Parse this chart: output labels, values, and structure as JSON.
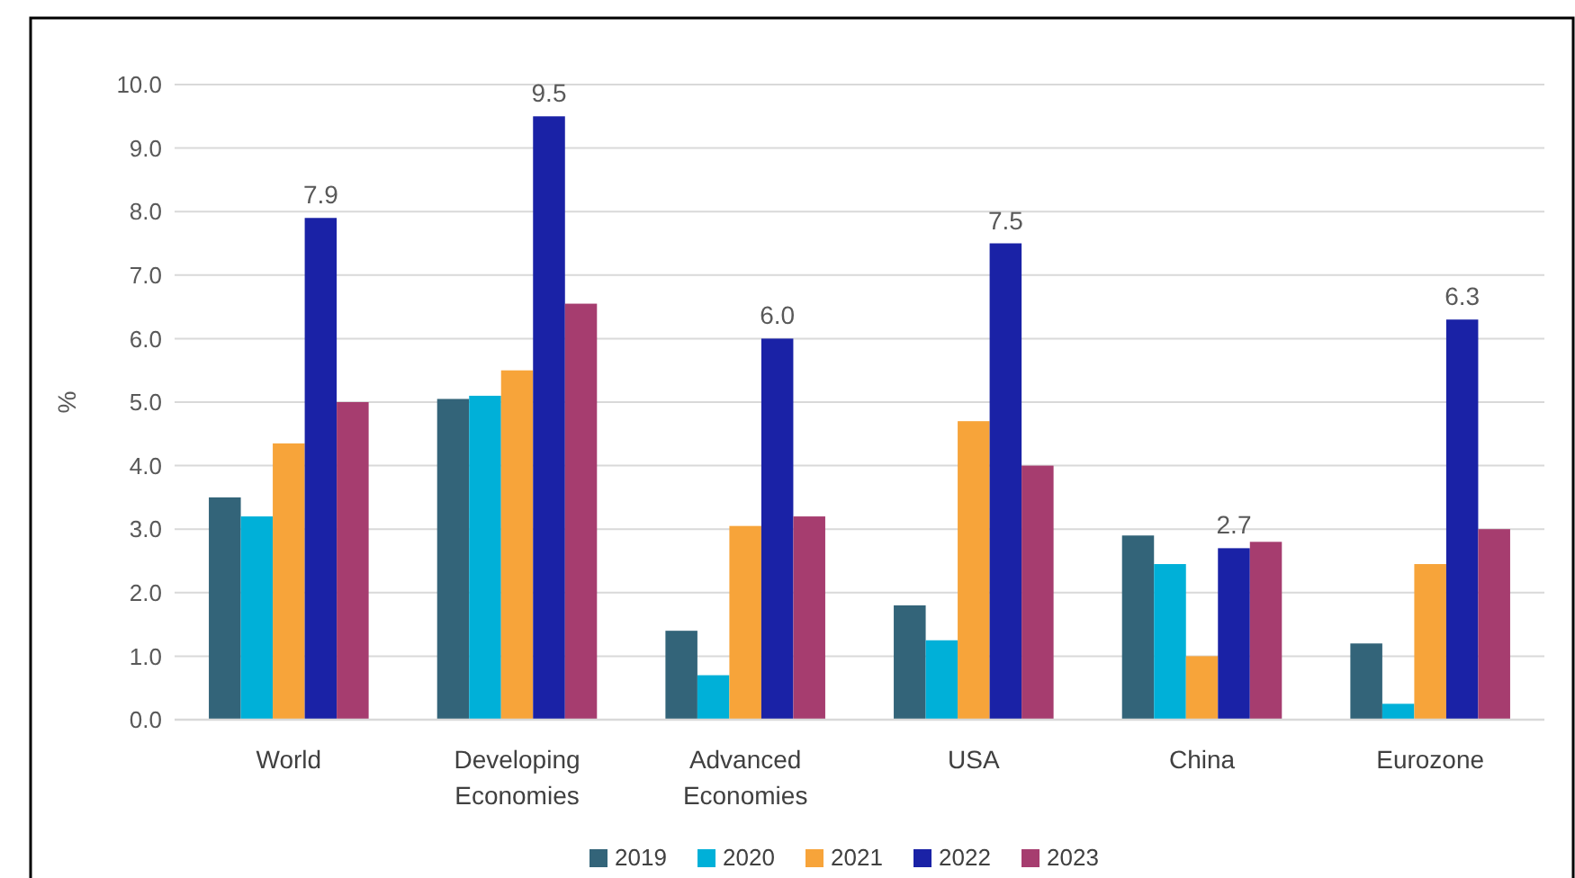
{
  "chart_data": {
    "type": "bar",
    "ylabel": "%",
    "categories": [
      "World",
      "Developing Economies",
      "Advanced Economies",
      "USA",
      "China",
      "Eurozone"
    ],
    "series": [
      {
        "name": "2019",
        "color": "#336479",
        "values": [
          3.5,
          5.05,
          1.4,
          1.8,
          2.9,
          1.2
        ]
      },
      {
        "name": "2020",
        "color": "#00b0d8",
        "values": [
          3.2,
          5.1,
          0.7,
          1.25,
          2.45,
          0.25
        ]
      },
      {
        "name": "2021",
        "color": "#f7a43a",
        "values": [
          4.35,
          5.5,
          3.05,
          4.7,
          1.0,
          2.45
        ]
      },
      {
        "name": "2022",
        "color": "#1a22a6",
        "values": [
          7.9,
          9.5,
          6.0,
          7.5,
          2.7,
          6.3
        ],
        "value_labels": [
          "7.9",
          "9.5",
          "6.0",
          "7.5",
          "2.7",
          "6.3"
        ]
      },
      {
        "name": "2023",
        "color": "#a63d6f",
        "values": [
          5.0,
          6.55,
          3.2,
          4.0,
          2.8,
          3.0
        ]
      }
    ],
    "ylim": [
      0,
      10
    ],
    "yticks": [
      {
        "value": 0,
        "label": "0.0"
      },
      {
        "value": 1,
        "label": "1.0"
      },
      {
        "value": 2,
        "label": "2.0"
      },
      {
        "value": 3,
        "label": "3.0"
      },
      {
        "value": 4,
        "label": "4.0"
      },
      {
        "value": 5,
        "label": "5.0"
      },
      {
        "value": 6,
        "label": "6.0"
      },
      {
        "value": 7,
        "label": "7.0"
      },
      {
        "value": 8,
        "label": "8.0"
      },
      {
        "value": 9,
        "label": "9.0"
      },
      {
        "value": 10,
        "label": "10.0"
      }
    ],
    "grid": "y",
    "legend": "bottom"
  }
}
